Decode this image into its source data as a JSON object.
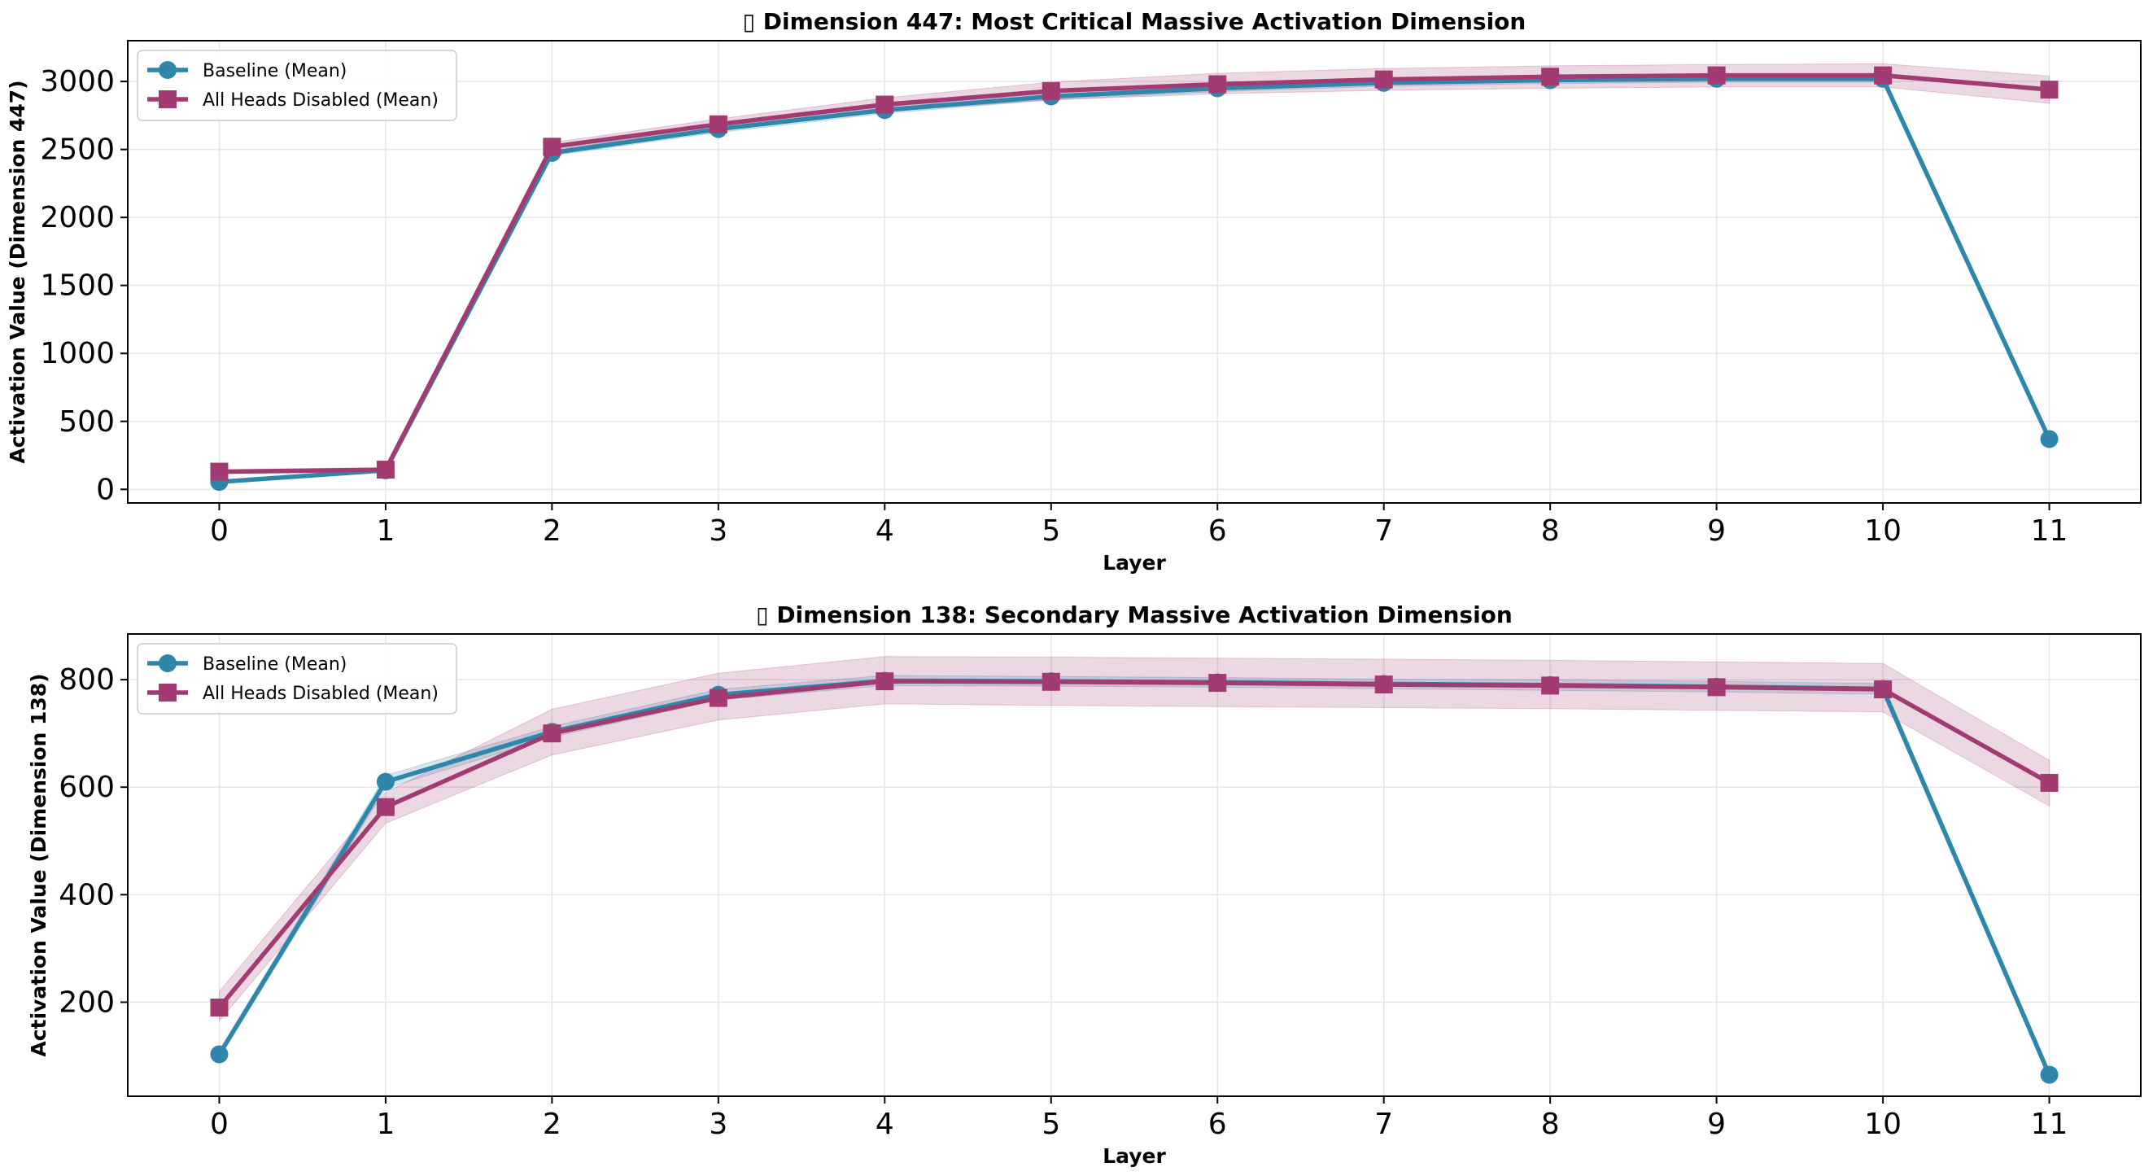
{
  "figure": {
    "colors": {
      "baseline": "#2E86AB",
      "disabled": "#A23B72"
    }
  },
  "chart_data": [
    {
      "type": "line",
      "title": "▯ Dimension 447: Most Critical Massive Activation Dimension",
      "xlabel": "Layer",
      "ylabel": "Activation Value (Dimension 447)",
      "x": [
        0,
        1,
        2,
        3,
        4,
        5,
        6,
        7,
        8,
        9,
        10,
        11
      ],
      "xlim": [
        -0.55,
        11.55
      ],
      "ylim": [
        -100,
        3300
      ],
      "yticks": [
        0,
        500,
        1000,
        1500,
        2000,
        2500,
        3000
      ],
      "grid": true,
      "legend_position": "top-left",
      "series": [
        {
          "name": "Baseline (Mean)",
          "marker": "circle",
          "values": [
            55,
            140,
            2475,
            2650,
            2790,
            2890,
            2950,
            2990,
            3010,
            3020,
            3020,
            370
          ],
          "band_lower": [
            45,
            130,
            2455,
            2625,
            2765,
            2865,
            2925,
            2965,
            2985,
            2995,
            2995,
            355
          ],
          "band_upper": [
            65,
            150,
            2495,
            2675,
            2815,
            2915,
            2975,
            3015,
            3035,
            3045,
            3045,
            385
          ]
        },
        {
          "name": "All Heads Disabled (Mean)",
          "marker": "square",
          "values": [
            130,
            145,
            2520,
            2685,
            2830,
            2930,
            2980,
            3015,
            3035,
            3045,
            3045,
            2940
          ],
          "band_lower": [
            115,
            130,
            2490,
            2645,
            2780,
            2865,
            2910,
            2935,
            2950,
            2960,
            2960,
            2840
          ],
          "band_upper": [
            145,
            160,
            2550,
            2725,
            2880,
            2995,
            3060,
            3095,
            3115,
            3125,
            3130,
            3040
          ]
        }
      ]
    },
    {
      "type": "line",
      "title": "▯ Dimension 138: Secondary Massive Activation Dimension",
      "xlabel": "Layer",
      "ylabel": "Activation Value (Dimension 138)",
      "x": [
        0,
        1,
        2,
        3,
        4,
        5,
        6,
        7,
        8,
        9,
        10,
        11
      ],
      "xlim": [
        -0.55,
        11.55
      ],
      "ylim": [
        25,
        885
      ],
      "yticks": [
        200,
        400,
        600,
        800
      ],
      "grid": true,
      "legend_position": "top-left",
      "series": [
        {
          "name": "Baseline (Mean)",
          "marker": "circle",
          "values": [
            103,
            610,
            703,
            772,
            798,
            797,
            795,
            792,
            790,
            787,
            783,
            65
          ],
          "band_lower": [
            96,
            598,
            693,
            762,
            789,
            788,
            786,
            783,
            780,
            777,
            773,
            58
          ],
          "band_upper": [
            110,
            622,
            713,
            782,
            808,
            806,
            804,
            801,
            800,
            797,
            793,
            72
          ]
        },
        {
          "name": "All Heads Disabled (Mean)",
          "marker": "square",
          "values": [
            190,
            563,
            700,
            766,
            797,
            796,
            794,
            791,
            789,
            786,
            782,
            608
          ],
          "band_lower": [
            165,
            533,
            660,
            725,
            755,
            752,
            750,
            748,
            746,
            743,
            740,
            565
          ],
          "band_upper": [
            220,
            590,
            745,
            812,
            843,
            842,
            840,
            838,
            836,
            833,
            830,
            650
          ]
        }
      ]
    }
  ]
}
